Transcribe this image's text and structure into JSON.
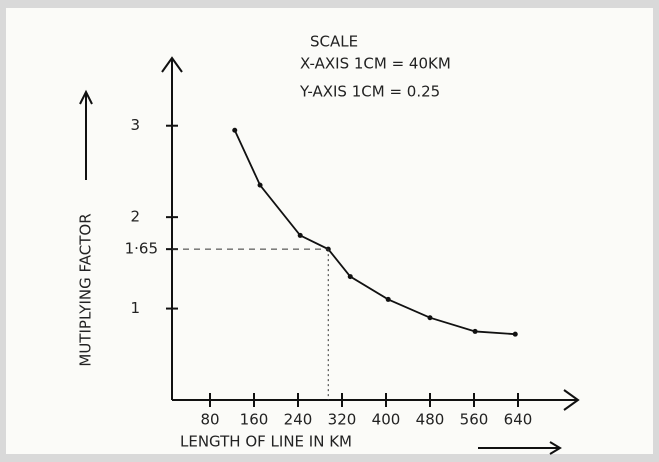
{
  "chart_data": {
    "type": "line",
    "annotations": [
      "SCALE",
      "X-AXIS 1CM = 40KM",
      "Y-AXIS 1CM = 0.25"
    ],
    "x_label": "LENGTH OF LINE IN KM",
    "y_label": "MUTIPLYING FACTOR",
    "x": [
      125,
      171,
      244,
      295,
      335,
      404,
      480,
      562,
      635
    ],
    "series": [
      {
        "color": "#111111",
        "values": [
          2.95,
          2.35,
          1.8,
          1.65,
          1.35,
          1.1,
          0.9,
          0.75,
          0.72
        ]
      }
    ],
    "xlim": [
      0,
      720
    ],
    "ylim": [
      0,
      3.5
    ],
    "xticks": [
      80,
      160,
      240,
      320,
      400,
      480,
      560,
      640
    ],
    "yticks": [
      1,
      {
        "value": 1.65,
        "label": "1·65"
      },
      2,
      3
    ]
  }
}
